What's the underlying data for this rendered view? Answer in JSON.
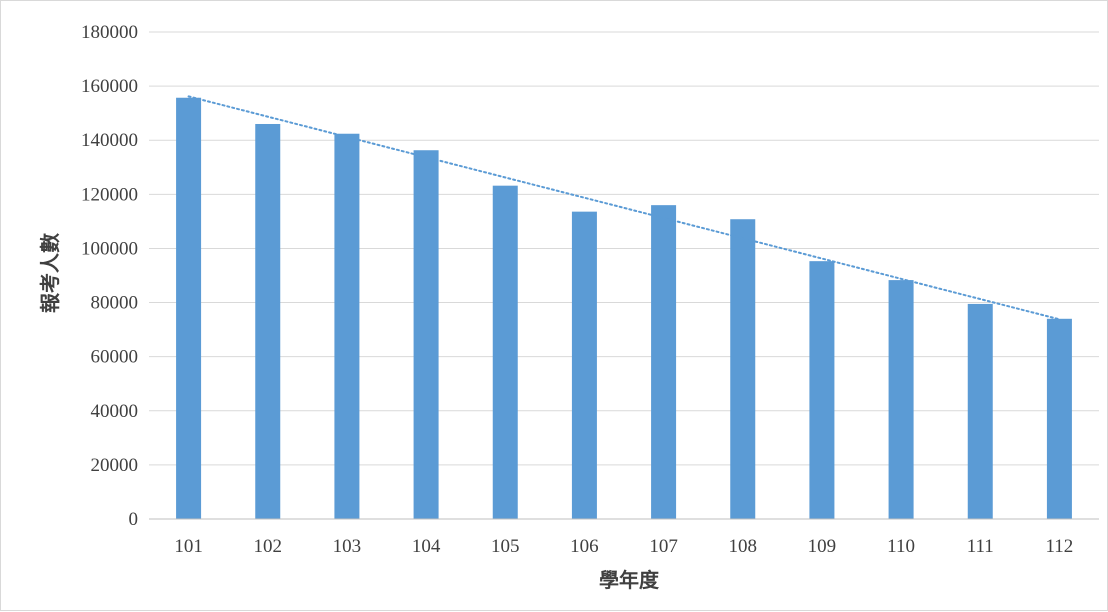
{
  "chart_data": {
    "type": "bar",
    "title": "",
    "xlabel": "學年度",
    "ylabel": "報考人數",
    "categories": [
      "101",
      "102",
      "103",
      "104",
      "105",
      "106",
      "107",
      "108",
      "109",
      "110",
      "111",
      "112"
    ],
    "values": [
      155700,
      146000,
      142400,
      136300,
      123200,
      113600,
      116000,
      110800,
      95300,
      88300,
      79500,
      74000
    ],
    "ylim": [
      0,
      180000
    ],
    "yticks": [
      "0",
      "20000",
      "40000",
      "60000",
      "80000",
      "100000",
      "120000",
      "140000",
      "160000",
      "180000"
    ],
    "grid": true,
    "legend": "none",
    "trendline": {
      "type": "linear",
      "style": "dotted",
      "start": 156200,
      "end": 73800
    },
    "colors": {
      "bar": "#5b9bd5",
      "trendline": "#5b9bd5",
      "grid": "#d9d9d9",
      "axis": "#bfbfbf",
      "text": "#404040"
    }
  }
}
